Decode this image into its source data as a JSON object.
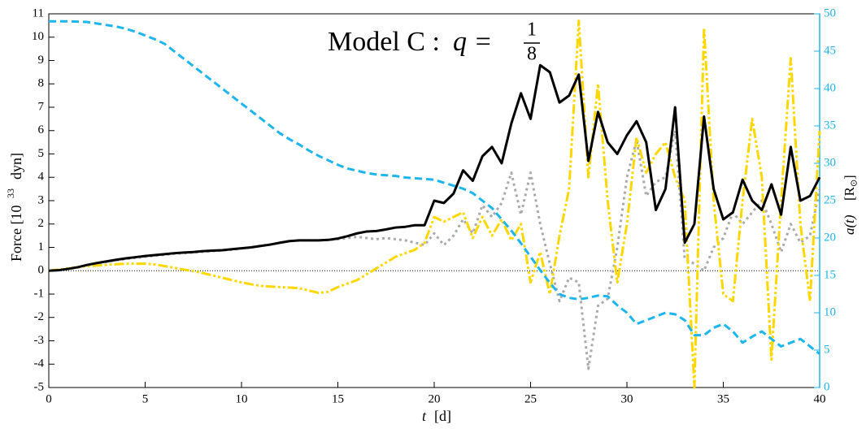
{
  "chart_data": {
    "type": "line",
    "title": "Model C :",
    "title_math": "q =",
    "title_fraction": {
      "numerator": "1",
      "denominator": "8"
    },
    "xlabel": {
      "variable": "t",
      "unit": "[d]"
    },
    "ylabel": {
      "text": "Force [10",
      "exponent": "33",
      "unit": "dyn]"
    },
    "y2label": {
      "variable": "a(t)",
      "unit": "[R",
      "sub": "⊙",
      "close": "]"
    },
    "xlim": [
      0,
      40
    ],
    "xticks": [
      0,
      5,
      10,
      15,
      20,
      25,
      30,
      35,
      40
    ],
    "ylim": [
      -5,
      11
    ],
    "yticks": [
      -5,
      -4,
      -3,
      -2,
      -1,
      0,
      1,
      2,
      3,
      4,
      5,
      6,
      7,
      8,
      9,
      10,
      11
    ],
    "y2lim": [
      0,
      50
    ],
    "y2ticks": [
      0,
      5,
      10,
      15,
      20,
      25,
      30,
      35,
      40,
      45,
      50
    ],
    "y2color": "#1cb5ee",
    "reference_line": 0,
    "x": [
      0,
      0.5,
      1,
      1.5,
      2,
      2.5,
      3,
      3.5,
      4,
      4.5,
      5,
      5.5,
      6,
      6.5,
      7,
      7.5,
      8,
      8.5,
      9,
      9.5,
      10,
      10.5,
      11,
      11.5,
      12,
      12.5,
      13,
      13.5,
      14,
      14.5,
      15,
      15.5,
      16,
      16.5,
      17,
      17.5,
      18,
      18.5,
      19,
      19.5,
      20,
      20.5,
      21,
      21.5,
      22,
      22.5,
      23,
      23.5,
      24,
      24.5,
      25,
      25.5,
      26,
      26.5,
      27,
      27.5,
      28,
      28.5,
      29,
      29.5,
      30,
      30.5,
      31,
      31.5,
      32,
      32.5,
      33,
      33.5,
      34,
      34.5,
      35,
      35.5,
      36,
      36.5,
      37,
      37.5,
      38,
      38.5,
      39,
      39.5,
      40
    ],
    "series": [
      {
        "color": "#aaaaaa",
        "dash": "3,4",
        "values": [
          0,
          0.02,
          0.07,
          0.14,
          0.23,
          0.31,
          0.38,
          0.45,
          0.5,
          0.55,
          0.6,
          0.64,
          0.68,
          0.72,
          0.75,
          0.78,
          0.81,
          0.84,
          0.87,
          0.9,
          0.95,
          1.0,
          1.07,
          1.13,
          1.2,
          1.27,
          1.3,
          1.3,
          1.3,
          1.32,
          1.35,
          1.4,
          1.45,
          1.4,
          1.35,
          1.4,
          1.35,
          1.3,
          1.2,
          1.1,
          1.6,
          1.1,
          1.5,
          2.2,
          1.6,
          2.8,
          2.3,
          2.9,
          4.2,
          2.4,
          4.2,
          2.0,
          0.3,
          -1.3,
          -0.3,
          -0.5,
          -4.2,
          -1.5,
          -1.2,
          1.0,
          4.0,
          5.6,
          3.2,
          3.8,
          4.0,
          6.0,
          0.5,
          0.3,
          0.0,
          1.0,
          1.4,
          2.5,
          2.0,
          2.5,
          3.0,
          2.0,
          0.8,
          2.0,
          1.2,
          1.5,
          3.5
        ]
      },
      {
        "color": "#ffd700",
        "dash": "12,3,3,3,3,3",
        "values": [
          0,
          0.05,
          0.1,
          0.15,
          0.2,
          0.22,
          0.25,
          0.28,
          0.3,
          0.3,
          0.3,
          0.27,
          0.2,
          0.13,
          0.05,
          -0.02,
          -0.1,
          -0.2,
          -0.3,
          -0.4,
          -0.5,
          -0.58,
          -0.65,
          -0.68,
          -0.7,
          -0.72,
          -0.75,
          -0.85,
          -0.95,
          -0.9,
          -0.7,
          -0.55,
          -0.4,
          -0.15,
          0.1,
          0.35,
          0.6,
          0.75,
          0.9,
          1.2,
          2.3,
          2.1,
          2.3,
          2.5,
          1.4,
          2.3,
          1.5,
          2.2,
          1.3,
          2.0,
          -0.5,
          0.8,
          -1.0,
          1.5,
          3.5,
          10.7,
          4.0,
          8.0,
          3.0,
          -0.5,
          2.0,
          5.7,
          4.2,
          5.0,
          5.5,
          4.0,
          3.0,
          -5.0,
          10.4,
          3.0,
          -1.0,
          -1.3,
          3.0,
          6.5,
          4.0,
          -3.8,
          3.0,
          9.1,
          2.0,
          -1.3,
          6.0
        ]
      },
      {
        "color": "#000000",
        "dash": "none",
        "values": [
          0,
          0.02,
          0.08,
          0.15,
          0.25,
          0.33,
          0.4,
          0.47,
          0.53,
          0.58,
          0.63,
          0.67,
          0.71,
          0.75,
          0.78,
          0.8,
          0.84,
          0.86,
          0.88,
          0.92,
          0.96,
          1.0,
          1.06,
          1.12,
          1.2,
          1.27,
          1.3,
          1.3,
          1.3,
          1.32,
          1.38,
          1.48,
          1.6,
          1.68,
          1.7,
          1.77,
          1.85,
          1.88,
          1.95,
          1.95,
          3.0,
          2.9,
          3.3,
          4.3,
          3.85,
          4.9,
          5.3,
          4.6,
          6.3,
          7.6,
          6.5,
          8.8,
          8.5,
          7.2,
          7.5,
          8.4,
          4.7,
          6.8,
          5.5,
          5.0,
          5.8,
          6.4,
          5.5,
          2.6,
          3.5,
          7.0,
          1.2,
          2.0,
          6.6,
          3.5,
          2.2,
          2.5,
          3.9,
          3.0,
          2.6,
          3.7,
          2.4,
          5.3,
          3.0,
          3.2,
          4.0
        ]
      },
      {
        "color": "#1cb5ee",
        "dash": "9,5",
        "axis": "y2",
        "values": [
          49,
          49,
          49,
          48.95,
          48.9,
          48.7,
          48.5,
          48.3,
          48,
          47.6,
          47.1,
          46.6,
          46,
          45,
          44,
          43,
          42,
          41,
          40,
          39,
          38,
          37,
          36,
          35,
          34,
          33.2,
          32.5,
          31.7,
          31,
          30.4,
          29.8,
          29.3,
          29,
          28.7,
          28.5,
          28.4,
          28.3,
          28.1,
          28,
          27.9,
          27.8,
          27.4,
          27,
          26.6,
          26,
          25,
          24,
          22.5,
          21,
          19.3,
          17.5,
          15.7,
          14,
          12.5,
          12,
          11.8,
          12,
          12.3,
          12.2,
          11,
          10,
          8.5,
          9,
          9.5,
          10,
          9.8,
          9,
          7,
          7,
          8,
          8.5,
          7.5,
          6,
          6.8,
          7.5,
          6.5,
          5.5,
          6,
          6.5,
          5.5,
          4.5
        ]
      }
    ]
  }
}
